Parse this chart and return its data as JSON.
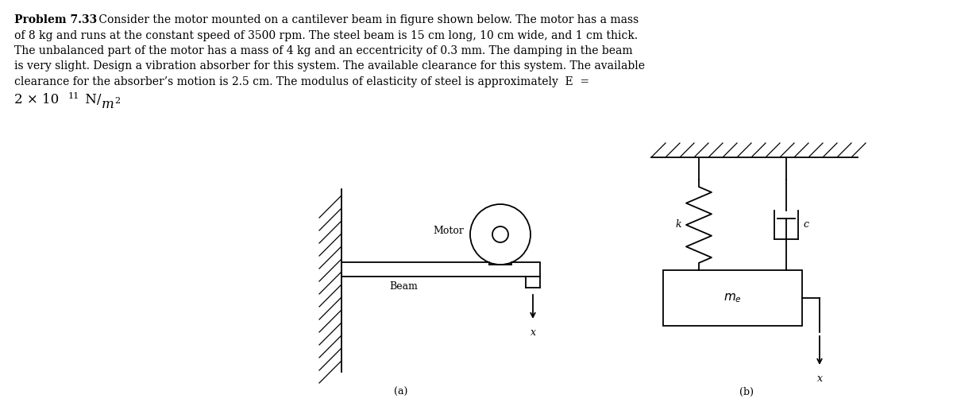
{
  "bg_color": "#ffffff",
  "line_color": "#000000",
  "fig_width": 12.0,
  "fig_height": 5.21,
  "text_lines": [
    "of 8 kg and runs at the constant speed of 3500 rpm. The steel beam is 15 cm long, 10 cm wide, and 1 cm thick.",
    "The unbalanced part of the motor has a mass of 4 kg and an eccentricity of 0.3 mm. The damping in the beam",
    "is very slight. Design a vibration absorber for this system. The available clearance for this system. The available",
    "clearance for the absorber’s motion is 2.5 cm. The modulus of elasticity of steel is approximately  E  ="
  ]
}
